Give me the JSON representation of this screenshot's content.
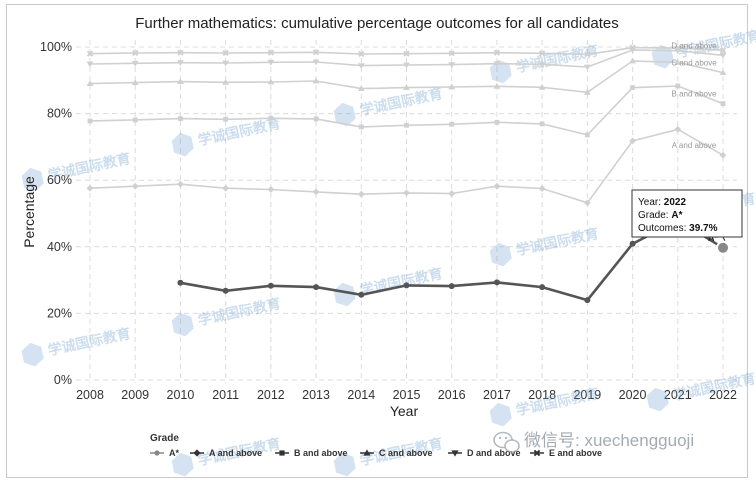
{
  "chart_data": {
    "type": "line",
    "title": "Further mathematics: cumulative percentage outcomes for all candidates",
    "xlabel": "Year",
    "ylabel": "Percentage",
    "ylim": [
      0,
      100
    ],
    "y_ticks": [
      "0%",
      "20%",
      "40%",
      "60%",
      "80%",
      "100%"
    ],
    "categories": [
      "2008",
      "2009",
      "2010",
      "2011",
      "2012",
      "2013",
      "2014",
      "2015",
      "2016",
      "2017",
      "2018",
      "2019",
      "2020",
      "2021",
      "2022"
    ],
    "grid": true,
    "legend_title": "Grade",
    "legend_position": "bottom",
    "series": [
      {
        "name": "A*",
        "color": "#555555",
        "marker": "circle",
        "highlight": true,
        "values": [
          null,
          null,
          29.2,
          26.8,
          28.3,
          27.9,
          25.6,
          28.4,
          28.2,
          29.3,
          27.9,
          24.0,
          40.9,
          48.0,
          39.7
        ]
      },
      {
        "name": "A and above",
        "color": "#d0d0d0",
        "marker": "diamond",
        "end_label": "A and above",
        "values": [
          57.6,
          58.2,
          58.8,
          57.6,
          57.2,
          56.5,
          55.8,
          56.2,
          56.0,
          58.2,
          57.5,
          53.2,
          71.8,
          75.3,
          67.5
        ]
      },
      {
        "name": "B and above",
        "color": "#d0d0d0",
        "marker": "square",
        "end_label": "B and above",
        "values": [
          77.8,
          78.1,
          78.5,
          78.3,
          78.6,
          78.4,
          76.0,
          76.5,
          76.8,
          77.4,
          76.9,
          73.6,
          87.8,
          88.3,
          83.0
        ]
      },
      {
        "name": "C and above",
        "color": "#d0d0d0",
        "marker": "triangle",
        "end_label": "C and above",
        "values": [
          89.0,
          89.3,
          89.6,
          89.4,
          89.5,
          89.8,
          87.5,
          87.8,
          88.0,
          88.2,
          87.9,
          86.4,
          95.8,
          95.4,
          92.3
        ]
      },
      {
        "name": "D and above",
        "color": "#d0d0d0",
        "marker": "triangle-down",
        "end_label": "D and above",
        "values": [
          94.9,
          95.1,
          95.3,
          95.2,
          95.4,
          95.5,
          94.4,
          94.6,
          94.7,
          95.0,
          94.8,
          94.0,
          99.1,
          98.9,
          97.5
        ]
      },
      {
        "name": "E and above",
        "color": "#d0d0d0",
        "marker": "cross",
        "values": [
          98.0,
          98.2,
          98.3,
          98.2,
          98.3,
          98.4,
          97.9,
          98.0,
          98.1,
          98.3,
          98.1,
          97.8,
          99.8,
          99.7,
          99.0
        ]
      }
    ],
    "tooltip": {
      "year_label": "Year: ",
      "year_value": "2022",
      "grade_label": "Grade: ",
      "grade_value": "A*",
      "outcome_label": "Outcomes: ",
      "outcome_value": "39.7%",
      "point_label": "A*"
    }
  },
  "watermark": {
    "text": "学诚国际教育"
  },
  "wechat": {
    "text": "微信号: xuechengguoji"
  }
}
